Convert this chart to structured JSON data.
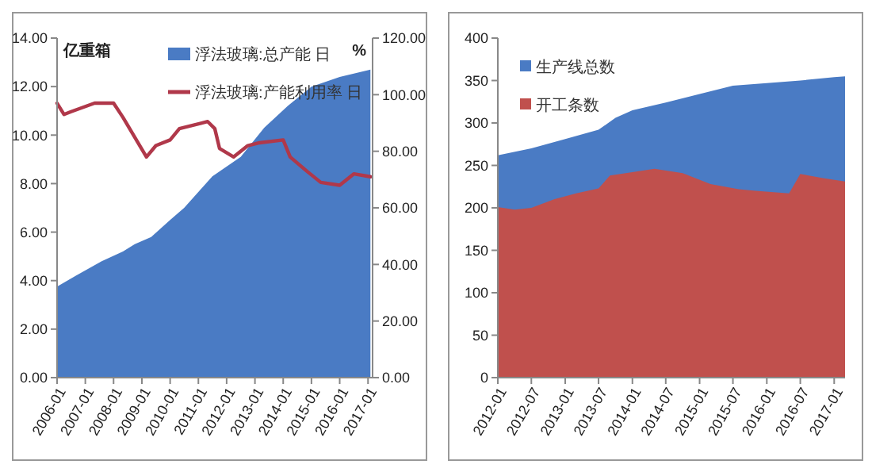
{
  "chart_data": [
    {
      "type": "area",
      "ylabel": "亿重箱",
      "y2label": "%",
      "legend": "top",
      "xlim": [
        "2006-01",
        "2017-03"
      ],
      "xticks": [
        {
          "value": "2006-01",
          "label": "2006-01"
        },
        {
          "value": "2007-01",
          "label": "2007-01"
        },
        {
          "value": "2008-01",
          "label": "2008-01"
        },
        {
          "value": "2009-01",
          "label": "2009-01"
        },
        {
          "value": "2010-01",
          "label": "2010-01"
        },
        {
          "value": "2011-01",
          "label": "2011-01"
        },
        {
          "value": "2012-01",
          "label": "2012-01"
        },
        {
          "value": "2013-01",
          "label": "2013-01"
        },
        {
          "value": "2014-01",
          "label": "2014-01"
        },
        {
          "value": "2015-01",
          "label": "2015-01"
        },
        {
          "value": "2016-01",
          "label": "2016-01"
        },
        {
          "value": "2017-01",
          "label": "2017-01"
        }
      ],
      "ylim": [
        0,
        14
      ],
      "yticks": [
        {
          "value": 0,
          "label": "0.00"
        },
        {
          "value": 2,
          "label": "2.00"
        },
        {
          "value": 4,
          "label": "4.00"
        },
        {
          "value": 6,
          "label": "6.00"
        },
        {
          "value": 8,
          "label": "8.00"
        },
        {
          "value": 10,
          "label": "10.00"
        },
        {
          "value": 12,
          "label": "12.00"
        },
        {
          "value": 14,
          "label": "14.00"
        }
      ],
      "y2lim": [
        0,
        120
      ],
      "y2ticks": [
        {
          "value": 0,
          "label": "0.00"
        },
        {
          "value": 20,
          "label": "20.00"
        },
        {
          "value": 40,
          "label": "40.00"
        },
        {
          "value": 60,
          "label": "60.00"
        },
        {
          "value": 80,
          "label": "80.00"
        },
        {
          "value": 100,
          "label": "100.00"
        },
        {
          "value": 120,
          "label": "120.00"
        }
      ],
      "series": [
        {
          "name": "浮法玻璃:总产能 日",
          "color": "#4a7bc4",
          "x": [
            "2006-01",
            "2006-09",
            "2007-08",
            "2008-05",
            "2008-10",
            "2009-05",
            "2010-01",
            "2010-07",
            "2011-07",
            "2012-07",
            "2013-05",
            "2014-03",
            "2015-01",
            "2016-01",
            "2017-02"
          ],
          "values": [
            3.75,
            4.2,
            4.8,
            5.2,
            5.5,
            5.8,
            6.5,
            7.0,
            8.3,
            9.1,
            10.3,
            11.2,
            12.0,
            12.4,
            12.7
          ]
        },
        {
          "name": "浮法玻璃:产能利用率 日",
          "type": "line",
          "axis": "y2",
          "color": "#b0384a",
          "x": [
            "2006-01",
            "2006-04",
            "2006-07",
            "2007-05",
            "2008-01",
            "2008-05",
            "2009-03",
            "2009-07",
            "2010-01",
            "2010-05",
            "2011-05",
            "2011-08",
            "2011-10",
            "2012-04",
            "2012-10",
            "2013-03",
            "2014-01",
            "2014-04",
            "2014-11",
            "2015-05",
            "2016-01",
            "2016-07",
            "2017-02"
          ],
          "values": [
            97,
            93,
            94,
            97,
            97,
            92,
            78,
            82,
            84,
            88,
            90.5,
            88,
            81,
            78,
            82,
            83,
            84,
            78,
            73,
            69,
            68,
            72,
            71
          ]
        }
      ]
    },
    {
      "type": "area",
      "legend": "top left",
      "xlim": [
        "2012-01",
        "2017-03"
      ],
      "xticks": [
        {
          "value": "2012-01",
          "label": "2012-01"
        },
        {
          "value": "2012-07",
          "label": "2012-07"
        },
        {
          "value": "2013-01",
          "label": "2013-01"
        },
        {
          "value": "2013-07",
          "label": "2013-07"
        },
        {
          "value": "2014-01",
          "label": "2014-01"
        },
        {
          "value": "2014-07",
          "label": "2014-07"
        },
        {
          "value": "2015-01",
          "label": "2015-01"
        },
        {
          "value": "2015-07",
          "label": "2015-07"
        },
        {
          "value": "2016-01",
          "label": "2016-01"
        },
        {
          "value": "2016-07",
          "label": "2016-07"
        },
        {
          "value": "2017-01",
          "label": "2017-01"
        }
      ],
      "ylim": [
        0,
        400
      ],
      "yticks": [
        0,
        50,
        100,
        150,
        200,
        250,
        300,
        350,
        400
      ],
      "series": [
        {
          "name": "生产线总数",
          "color": "#4a7bc4",
          "x": [
            "2012-01",
            "2012-07",
            "2013-01",
            "2013-07",
            "2013-10",
            "2014-01",
            "2014-07",
            "2015-01",
            "2015-07",
            "2016-01",
            "2016-07",
            "2017-01",
            "2017-03"
          ],
          "values": [
            262,
            270,
            281,
            292,
            306,
            315,
            324,
            334,
            344,
            347,
            350,
            354,
            355
          ]
        },
        {
          "name": "开工条数",
          "color": "#c0504d",
          "x": [
            "2012-01",
            "2012-04",
            "2012-07",
            "2012-11",
            "2013-03",
            "2013-07",
            "2013-09",
            "2014-01",
            "2014-05",
            "2014-10",
            "2015-03",
            "2015-08",
            "2015-11",
            "2016-05",
            "2016-07",
            "2016-11",
            "2017-03"
          ],
          "values": [
            201,
            198,
            200,
            210,
            217,
            223,
            238,
            242,
            246,
            241,
            228,
            222,
            220,
            217,
            240,
            235,
            231
          ]
        }
      ]
    }
  ]
}
